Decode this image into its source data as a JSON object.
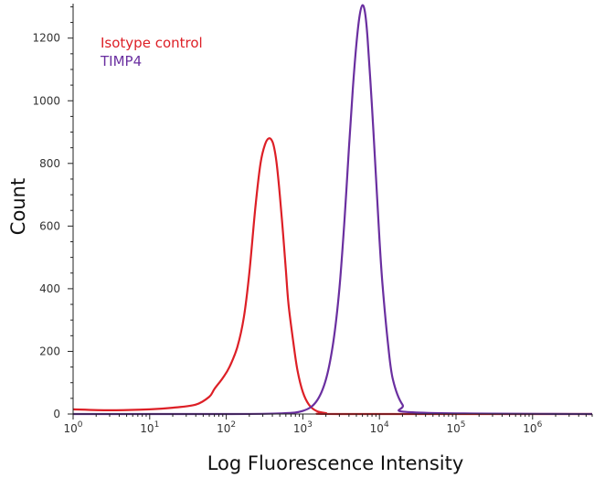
{
  "chart_data": {
    "type": "line",
    "xlabel": "Log Fluorescence Intensity",
    "ylabel": "Count",
    "xscale": "log",
    "xlim": [
      1,
      6000000
    ],
    "ylim": [
      0,
      1310
    ],
    "x_ticks": [
      {
        "value": 1,
        "base": "10",
        "exp": "0"
      },
      {
        "value": 10,
        "base": "10",
        "exp": "1"
      },
      {
        "value": 100,
        "base": "10",
        "exp": "2"
      },
      {
        "value": 1000,
        "base": "10",
        "exp": "3"
      },
      {
        "value": 10000,
        "base": "10",
        "exp": "4"
      },
      {
        "value": 100000,
        "base": "10",
        "exp": "5"
      },
      {
        "value": 1000000,
        "base": "10",
        "exp": "6"
      }
    ],
    "y_ticks": [
      {
        "value": 0,
        "label": "0"
      },
      {
        "value": 200,
        "label": "200"
      },
      {
        "value": 400,
        "label": "400"
      },
      {
        "value": 600,
        "label": "600"
      },
      {
        "value": 800,
        "label": "800"
      },
      {
        "value": 1000,
        "label": "1000"
      },
      {
        "value": 1200,
        "label": "1200"
      }
    ],
    "legend_position": "top-left",
    "grid": false,
    "series": [
      {
        "name": "Isotype control",
        "color": "#dd1f26",
        "x": [
          1,
          3,
          10,
          20,
          40,
          60,
          70,
          90,
          110,
          140,
          170,
          200,
          240,
          280,
          320,
          360,
          400,
          430,
          460,
          500,
          550,
          600,
          650,
          750,
          850,
          1000,
          1200,
          1500,
          2000,
          3000,
          6000000
        ],
        "y": [
          15,
          12,
          15,
          20,
          30,
          55,
          80,
          115,
          150,
          215,
          310,
          450,
          660,
          800,
          860,
          880,
          870,
          840,
          790,
          700,
          580,
          460,
          350,
          230,
          140,
          70,
          30,
          10,
          3,
          0,
          0
        ]
      },
      {
        "name": "TIMP4",
        "color": "#6a2fa0",
        "x": [
          1,
          100,
          500,
          1000,
          1500,
          2000,
          2500,
          3000,
          3500,
          4000,
          4500,
          5000,
          5500,
          6000,
          6500,
          7000,
          8000,
          9000,
          10000,
          11000,
          13000,
          15000,
          20000,
          30000,
          6000000
        ],
        "y": [
          0,
          0,
          2,
          10,
          40,
          110,
          230,
          400,
          620,
          850,
          1040,
          1180,
          1270,
          1305,
          1280,
          1200,
          980,
          760,
          560,
          410,
          220,
          110,
          30,
          5,
          0
        ]
      }
    ]
  }
}
